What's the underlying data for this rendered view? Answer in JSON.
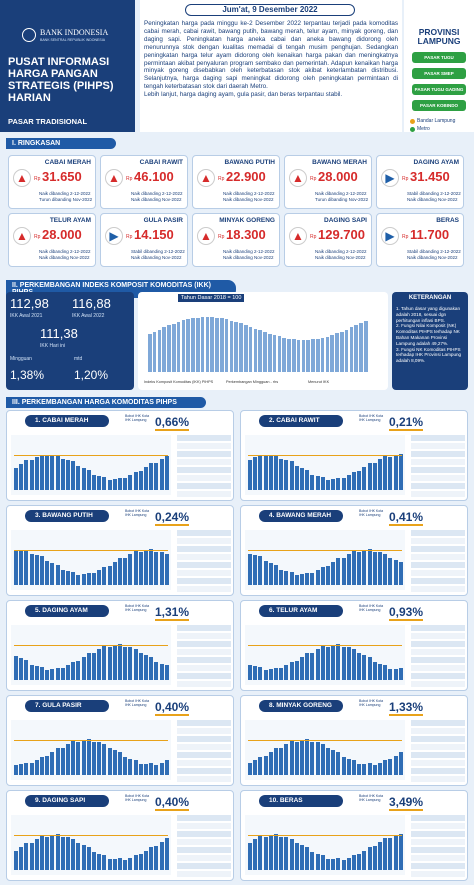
{
  "header": {
    "bank": "BANK INDONESIA",
    "bank_sub": "BANK SENTRAL REPUBLIK INDONESIA",
    "title": "PUSAT INFORMASI HARGA PANGAN STRATEGIS (PIHPS) HARIAN",
    "subtitle": "PASAR TRADISIONAL"
  },
  "date": "Jum'at, 9 Desember 2022",
  "intro": [
    "Peningkatan harga pada minggu ke-2 Desember 2022 terpantau terjadi pada komoditas cabai merah, cabai rawit, bawang putih, bawang merah, telur ayam, minyak goreng, dan daging sapi. Peningkatan harga aneka cabai dan aneka bawang didorong oleh menurunnya stok dengan kualitas memadai di tengah musim penghujan. Sedangkan peningkatan harga telur ayam didorong oleh kenaikan harga pakan dan meningkatnya permintaan akibat penyaluran program sembako dan pemerintah. Adapun kenaikan harga minyak goreng disebabkan oleh keterbatasan stok akibat keterlambatan distribusi. Selanjutnya, harga daging sapi meningkat didorong oleh peningkatan permintaan di tengah keterbatasan stok dari daerah Metro.",
    "Lebih lanjut, harga daging ayam, gula pasir, dan beras terpantau stabil."
  ],
  "province": {
    "title": "PROVINSI LAMPUNG",
    "markets": [
      "PASAR TUGU",
      "PASAR SMEP",
      "PASAR TUGU GADING",
      "PASAR KOBINDO"
    ],
    "legend": [
      {
        "name": "Bandar Lampung",
        "color": "#e8a21a"
      },
      {
        "name": "Metro",
        "color": "#2ea043"
      }
    ]
  },
  "summary": {
    "title": "I. RINGKASAN",
    "currency": "Rp",
    "items": [
      {
        "name": "CABAI MERAH",
        "price": "31.650",
        "direction": "up",
        "notes": [
          "Naik dibanding 2-12-2022",
          "Turun dibanding Nov-2022"
        ]
      },
      {
        "name": "CABAI RAWIT",
        "price": "46.100",
        "direction": "up",
        "notes": [
          "Naik dibanding 2-12-2022",
          "Naik dibanding Nov-2022"
        ]
      },
      {
        "name": "BAWANG PUTIH",
        "price": "22.900",
        "direction": "up",
        "notes": [
          "Naik dibanding 2-12-2022",
          "Naik dibanding Nov-2022"
        ]
      },
      {
        "name": "BAWANG MERAH",
        "price": "28.000",
        "direction": "up",
        "notes": [
          "Naik dibanding 2-12-2022",
          "Turun dibanding Nov-2022"
        ]
      },
      {
        "name": "DAGING AYAM",
        "price": "31.450",
        "direction": "flat",
        "notes": [
          "Stabil dibanding 2-12-2022",
          "Naik dibanding Nov-2022"
        ]
      },
      {
        "name": "TELUR AYAM",
        "price": "28.000",
        "direction": "up",
        "notes": [
          "Naik dibanding 2-12-2022",
          "Naik dibanding Nov-2022"
        ]
      },
      {
        "name": "GULA PASIR",
        "price": "14.150",
        "direction": "flat",
        "notes": [
          "Stabil dibanding 2-12-2022",
          "Naik dibanding Nov-2022"
        ]
      },
      {
        "name": "MINYAK GORENG",
        "price": "18.300",
        "direction": "up",
        "notes": [
          "Naik dibanding 2-12-2022",
          "Naik dibanding Nov-2022"
        ]
      },
      {
        "name": "DAGING SAPI",
        "price": "129.700",
        "direction": "up",
        "notes": [
          "Naik dibanding 2-12-2022",
          "Naik dibanding Nov-2022"
        ]
      },
      {
        "name": "BERAS",
        "price": "11.700",
        "direction": "flat",
        "notes": [
          "Stabil dibanding 2-12-2022",
          "Naik dibanding Nov-2022"
        ]
      }
    ]
  },
  "ikk": {
    "title": "II. PERKEMBANGAN INDEKS KOMPOSIT KOMODITAS (IKK) PIHPS",
    "stats": [
      {
        "value": "112,98",
        "label": "IKK Awal 2021"
      },
      {
        "value": "116,88",
        "label": "IKK Awal 2022"
      },
      {
        "value": "111,38",
        "label": "IKK Hari ini"
      }
    ],
    "changes": [
      {
        "label": "Mingguan",
        "value": "1,38%"
      },
      {
        "label": "mtd",
        "value": "1,20%"
      }
    ],
    "base": "Tahun Dasar 2018 = 100",
    "legend": [
      "Indeks Komposit Komoditas (IKK) PIHPS",
      "Perkembangan Mingguan - rhs",
      "Menurut IKK"
    ],
    "notes_title": "KETERANGAN",
    "notes": [
      "1. Tahun dasar yang digunakan adalah 2018, sesuai dgn perhitungan inflasi BPS.",
      "2. Fungsi Nilai Komposit (NK) Komoditas PIHPS terhadap NK Bahan Makanan Provinsi Lampung adalah 49,27%.",
      "3. Fungsi NK Komoditas PIHPS terhadap IHK Provinsi Lampung adalah 8,09%."
    ]
  },
  "commodities": {
    "title": "III. PERKEMBANGAN HARGA KOMODITAS PIHPS",
    "box_label": "Bobot IHK Kota IHK Lampung",
    "items": [
      {
        "name": "1. CABAI MERAH",
        "weight": "0,66%"
      },
      {
        "name": "2. CABAI RAWIT",
        "weight": "0,21%"
      },
      {
        "name": "3. BAWANG PUTIH",
        "weight": "0,24%"
      },
      {
        "name": "4. BAWANG MERAH",
        "weight": "0,41%"
      },
      {
        "name": "5. DAGING AYAM",
        "weight": "1,31%"
      },
      {
        "name": "6. TELUR AYAM",
        "weight": "0,93%"
      },
      {
        "name": "7. GULA PASIR",
        "weight": "0,40%"
      },
      {
        "name": "8. MINYAK GORENG",
        "weight": "1,33%"
      },
      {
        "name": "9. DAGING SAPI",
        "weight": "0,40%"
      },
      {
        "name": "10. BERAS",
        "weight": "3,49%"
      }
    ]
  }
}
